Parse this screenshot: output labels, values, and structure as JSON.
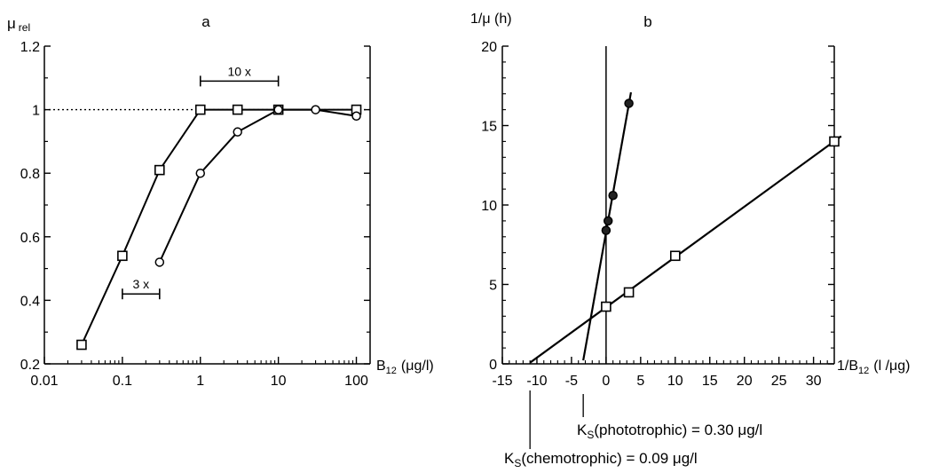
{
  "chart_data": [
    {
      "panel": "a",
      "type": "line",
      "ylabel": "μ",
      "ylabel_sub": "rel",
      "xlabel": "B",
      "xlabel_sub": "12",
      "xlabel_unit": "(μg/l)",
      "xscale": "log",
      "xlim": [
        0.01,
        150
      ],
      "ylim": [
        0.2,
        1.2
      ],
      "x_ticks": [
        0.01,
        0.1,
        1,
        10,
        100
      ],
      "x_tick_labels": [
        "0.01",
        "0.1",
        "1",
        "10",
        "100"
      ],
      "y_ticks": [
        0.2,
        0.4,
        0.6,
        0.8,
        1,
        1.2
      ],
      "y_tick_labels": [
        "0.2",
        "0.4",
        "0.6",
        "0.8",
        "1",
        "1.2"
      ],
      "reference_line": 1,
      "series": [
        {
          "marker": "square",
          "x": [
            0.03,
            0.1,
            0.3,
            1,
            3,
            10,
            100
          ],
          "y": [
            0.26,
            0.54,
            0.81,
            1.0,
            1.0,
            1.0,
            1.0
          ]
        },
        {
          "marker": "circle",
          "x": [
            0.3,
            1,
            3,
            10,
            30,
            100
          ],
          "y": [
            0.52,
            0.8,
            0.93,
            1.0,
            1.0,
            0.98
          ]
        }
      ],
      "annotations": [
        {
          "label": "10 x",
          "x_from": 1,
          "x_to": 10,
          "y": 1.09
        },
        {
          "label": "3 x",
          "x_from": 0.1,
          "x_to": 0.3,
          "y": 0.42
        }
      ]
    },
    {
      "panel": "b",
      "type": "scatter",
      "ylabel": "1/μ (h)",
      "xlabel_prefix": "1/B",
      "xlabel_sub": "12",
      "xlabel_unit": "(l /μg)",
      "xlim": [
        -15,
        33
      ],
      "ylim": [
        0,
        20
      ],
      "x_ticks": [
        -15,
        -10,
        -5,
        0,
        5,
        10,
        15,
        20,
        25,
        30
      ],
      "x_tick_labels": [
        "-15",
        "-10",
        "-5",
        "0",
        "5",
        "10",
        "15",
        "20",
        "25",
        "30"
      ],
      "y_ticks": [
        0,
        5,
        10,
        15,
        20
      ],
      "y_tick_labels": [
        "0",
        "5",
        "10",
        "15",
        "20"
      ],
      "series": [
        {
          "marker": "square",
          "x": [
            0,
            3.3,
            10,
            33
          ],
          "y": [
            3.6,
            4.5,
            6.8,
            14.0
          ],
          "fit": {
            "x_from": -11,
            "x_to": 34
          }
        },
        {
          "marker": "circle-filled",
          "x": [
            0,
            0.3,
            1,
            3.3
          ],
          "y": [
            8.4,
            9.0,
            10.6,
            16.4
          ],
          "fit": {
            "x_from": -3.3,
            "x_to": 3.6
          }
        }
      ],
      "annotations": [
        {
          "label_prefix": "K",
          "label_sub": "S",
          "label": "(phototrophic) = 0.30   μg/l",
          "x": -3.3
        },
        {
          "label_prefix": "K",
          "label_sub": "S",
          "label": "(chemotrophic) = 0.09   μg/l",
          "x": -11
        }
      ]
    }
  ]
}
